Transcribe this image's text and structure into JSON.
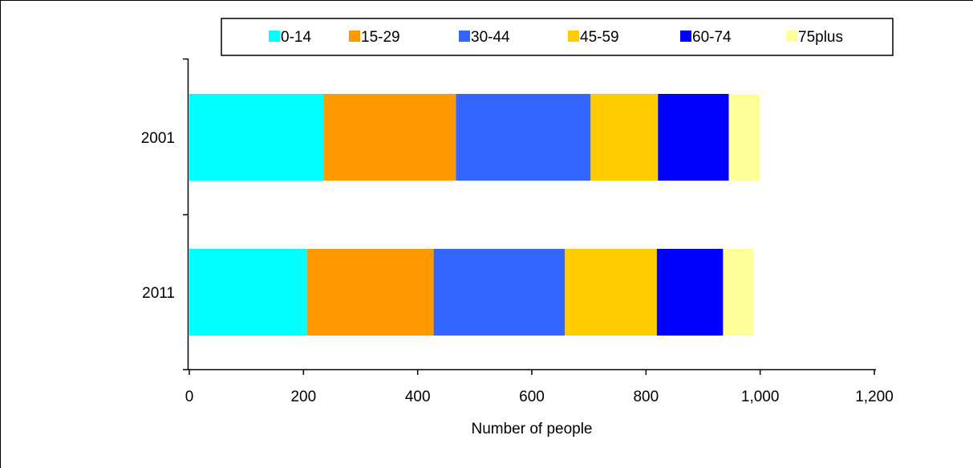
{
  "chart_data": {
    "type": "bar",
    "orientation": "horizontal",
    "stacked": true,
    "title": "",
    "xlabel": "Number of people",
    "ylabel": "",
    "xlim": [
      0,
      1200
    ],
    "xticks": [
      0,
      200,
      400,
      600,
      800,
      1000,
      1200
    ],
    "xtick_labels": [
      "0",
      "200",
      "400",
      "600",
      "800",
      "1,000",
      "1,200"
    ],
    "grid": false,
    "legend_position": "top",
    "categories": [
      "2001",
      "2011"
    ],
    "series": [
      {
        "name": "0-14",
        "color": "#00FFFF",
        "values": [
          236,
          206
        ]
      },
      {
        "name": "15-29",
        "color": "#FF9900",
        "values": [
          231,
          222
        ]
      },
      {
        "name": "30-44",
        "color": "#3366FF",
        "values": [
          236,
          230
        ]
      },
      {
        "name": "45-59",
        "color": "#FFCC00",
        "values": [
          118,
          161
        ]
      },
      {
        "name": "60-74",
        "color": "#0000FF",
        "values": [
          124,
          116
        ]
      },
      {
        "name": "75plus",
        "color": "#FFFF99",
        "values": [
          54,
          54
        ]
      }
    ]
  }
}
